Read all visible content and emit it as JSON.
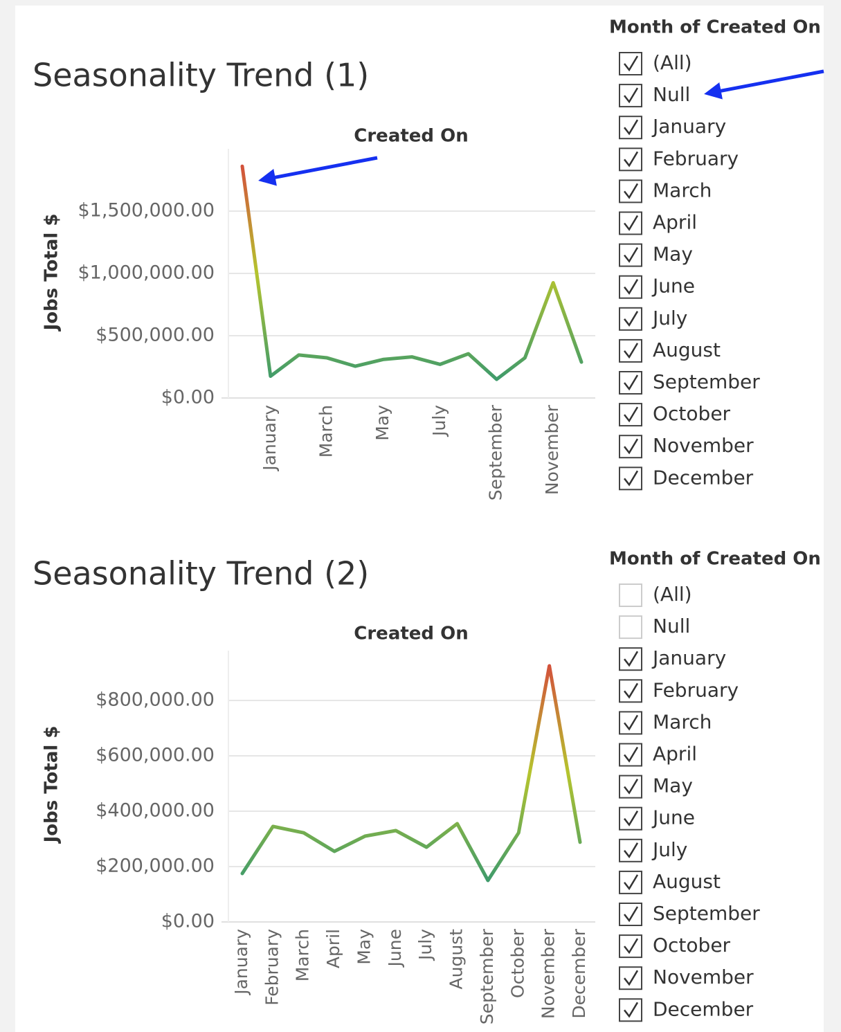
{
  "chart_data": [
    {
      "type": "line",
      "title": "Seasonality Trend (1)",
      "x_label": "Created On",
      "y_label": "Jobs Total $",
      "categories": [
        null,
        "January",
        null,
        "March",
        null,
        "May",
        null,
        "July",
        null,
        "September",
        null,
        "November",
        null
      ],
      "values": [
        1860000,
        175000,
        345000,
        322000,
        255000,
        310000,
        330000,
        270000,
        355000,
        150000,
        322000,
        925000,
        288000
      ],
      "color_scale": [
        "#3f9b6b",
        "#b5c42e",
        "#d3523b"
      ],
      "ylim": [
        0,
        2000000
      ],
      "yticks": [
        {
          "value": 0,
          "label": "$0.00"
        },
        {
          "value": 500000,
          "label": "$500,000.00"
        },
        {
          "value": 1000000,
          "label": "$1,000,000.00"
        },
        {
          "value": 1500000,
          "label": "$1,500,000.00"
        }
      ],
      "grid": true
    },
    {
      "type": "line",
      "title": "Seasonality Trend (2)",
      "x_label": "Created On",
      "y_label": "Jobs Total $",
      "categories": [
        "January",
        "February",
        "March",
        "April",
        "May",
        "June",
        "July",
        "August",
        "September",
        "October",
        "November",
        "December"
      ],
      "values": [
        175000,
        345000,
        322000,
        255000,
        310000,
        330000,
        270000,
        355000,
        150000,
        322000,
        925000,
        288000
      ],
      "color_scale": [
        "#3f9b6b",
        "#b5c42e",
        "#d3523b"
      ],
      "ylim": [
        0,
        980000
      ],
      "yticks": [
        {
          "value": 0,
          "label": "$0.00"
        },
        {
          "value": 200000,
          "label": "$200,000.00"
        },
        {
          "value": 400000,
          "label": "$400,000.00"
        },
        {
          "value": 600000,
          "label": "$600,000.00"
        },
        {
          "value": 800000,
          "label": "$800,000.00"
        }
      ],
      "grid": true
    }
  ],
  "filters": [
    {
      "title": "Month of Created On",
      "items": [
        {
          "label": "(All)",
          "checked": true
        },
        {
          "label": "Null",
          "checked": true
        },
        {
          "label": "January",
          "checked": true
        },
        {
          "label": "February",
          "checked": true
        },
        {
          "label": "March",
          "checked": true
        },
        {
          "label": "April",
          "checked": true
        },
        {
          "label": "May",
          "checked": true
        },
        {
          "label": "June",
          "checked": true
        },
        {
          "label": "July",
          "checked": true
        },
        {
          "label": "August",
          "checked": true
        },
        {
          "label": "September",
          "checked": true
        },
        {
          "label": "October",
          "checked": true
        },
        {
          "label": "November",
          "checked": true
        },
        {
          "label": "December",
          "checked": true
        }
      ]
    },
    {
      "title": "Month of Created On",
      "items": [
        {
          "label": "(All)",
          "checked": false
        },
        {
          "label": "Null",
          "checked": false
        },
        {
          "label": "January",
          "checked": true
        },
        {
          "label": "February",
          "checked": true
        },
        {
          "label": "March",
          "checked": true
        },
        {
          "label": "April",
          "checked": true
        },
        {
          "label": "May",
          "checked": true
        },
        {
          "label": "June",
          "checked": true
        },
        {
          "label": "July",
          "checked": true
        },
        {
          "label": "August",
          "checked": true
        },
        {
          "label": "September",
          "checked": true
        },
        {
          "label": "October",
          "checked": true
        },
        {
          "label": "November",
          "checked": true
        },
        {
          "label": "December",
          "checked": true
        }
      ]
    }
  ]
}
